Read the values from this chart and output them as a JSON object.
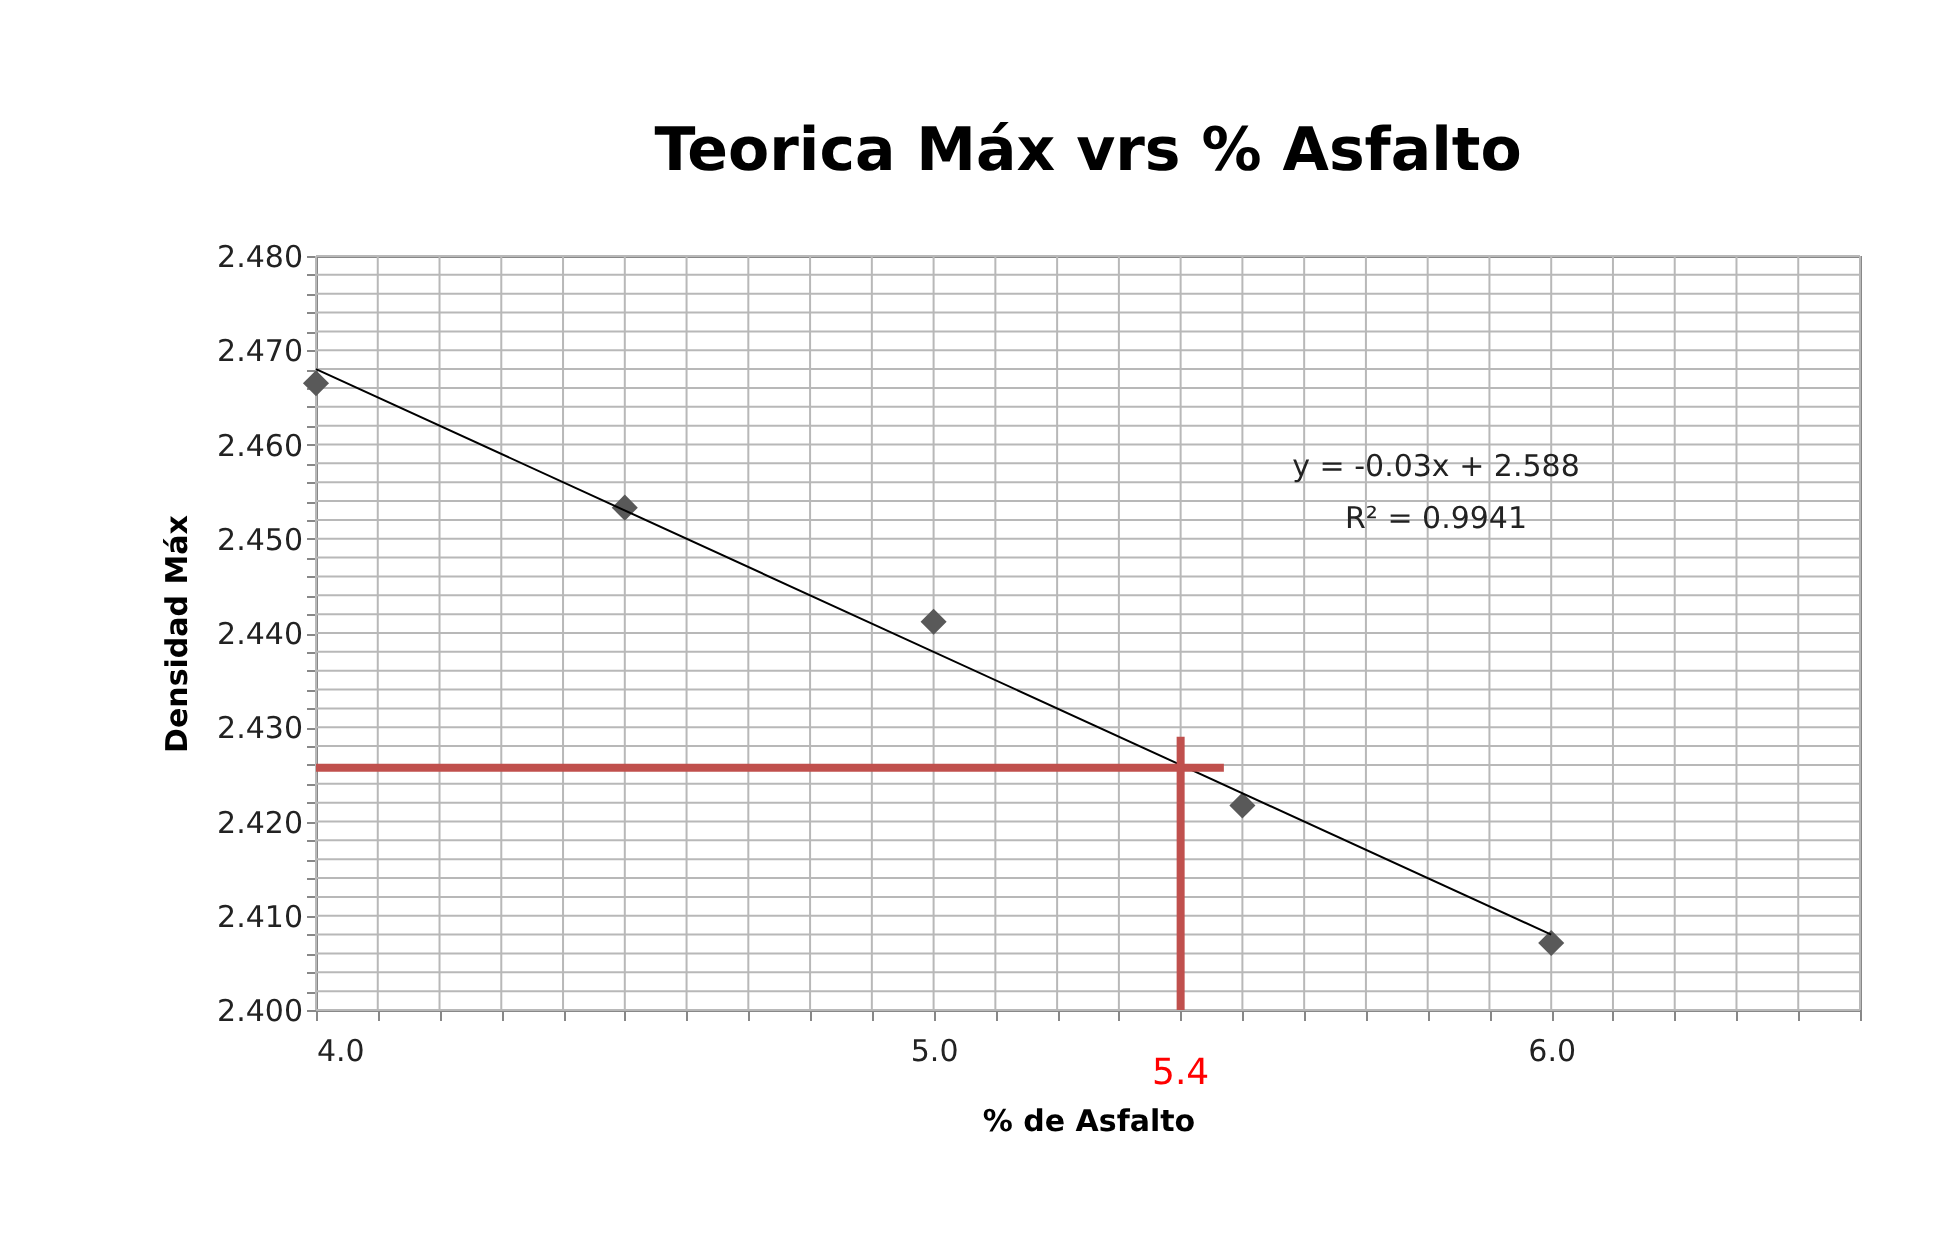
{
  "chart_data": {
    "type": "scatter",
    "title": "Teorica Máx vrs % Asfalto",
    "xlabel": "% de Asfalto",
    "ylabel": "Densidad Máx",
    "x": [
      4.0,
      4.5,
      5.0,
      5.5,
      6.0
    ],
    "series": [
      {
        "color": "#595959",
        "values": [
          2.4665,
          2.4533,
          2.4412,
          2.4217,
          2.4071
        ],
        "marker": "diamond"
      },
      {
        "type": "line",
        "color": "#000000",
        "x": [
          4.0,
          6.0
        ],
        "values": [
          2.468,
          2.408
        ],
        "marker": "none"
      },
      {
        "type": "line",
        "color": "#c0504d",
        "x": [
          4.0,
          5.47
        ],
        "values": [
          2.4257,
          2.4257
        ],
        "marker": "none"
      },
      {
        "type": "line",
        "color": "#c0504d",
        "x": [
          5.4,
          5.4
        ],
        "values": [
          2.4,
          2.429
        ],
        "marker": "none"
      }
    ],
    "xlim": [
      4.0,
      6.5
    ],
    "xticks": [
      {
        "value": 4.0,
        "label": "4.0"
      },
      {
        "value": 4.1,
        "label": null
      },
      {
        "value": 4.2,
        "label": null
      },
      {
        "value": 4.3,
        "label": null
      },
      {
        "value": 4.4,
        "label": null
      },
      {
        "value": 4.5,
        "label": null
      },
      {
        "value": 4.6,
        "label": null
      },
      {
        "value": 4.7,
        "label": null
      },
      {
        "value": 4.8,
        "label": null
      },
      {
        "value": 4.9,
        "label": null
      },
      {
        "value": 5.0,
        "label": "5.0"
      },
      {
        "value": 5.1,
        "label": null
      },
      {
        "value": 5.2,
        "label": null
      },
      {
        "value": 5.3,
        "label": null
      },
      {
        "value": 5.4,
        "label": null
      },
      {
        "value": 5.5,
        "label": null
      },
      {
        "value": 5.6,
        "label": null
      },
      {
        "value": 5.7,
        "label": null
      },
      {
        "value": 5.8,
        "label": null
      },
      {
        "value": 5.9,
        "label": null
      },
      {
        "value": 6.0,
        "label": "6.0"
      },
      {
        "value": 6.1,
        "label": null
      },
      {
        "value": 6.2,
        "label": null
      },
      {
        "value": 6.3,
        "label": null
      },
      {
        "value": 6.4,
        "label": null
      },
      {
        "value": 6.5,
        "label": null
      }
    ],
    "ylim": [
      2.4,
      2.48
    ],
    "yticks": [
      {
        "value": 2.4,
        "label": "2.400"
      },
      {
        "value": 2.402,
        "label": null
      },
      {
        "value": 2.404,
        "label": null
      },
      {
        "value": 2.406,
        "label": null
      },
      {
        "value": 2.408,
        "label": null
      },
      {
        "value": 2.41,
        "label": "2.410"
      },
      {
        "value": 2.412,
        "label": null
      },
      {
        "value": 2.414,
        "label": null
      },
      {
        "value": 2.416,
        "label": null
      },
      {
        "value": 2.418,
        "label": null
      },
      {
        "value": 2.42,
        "label": "2.420"
      },
      {
        "value": 2.422,
        "label": null
      },
      {
        "value": 2.424,
        "label": null
      },
      {
        "value": 2.426,
        "label": null
      },
      {
        "value": 2.428,
        "label": null
      },
      {
        "value": 2.43,
        "label": "2.430"
      },
      {
        "value": 2.432,
        "label": null
      },
      {
        "value": 2.434,
        "label": null
      },
      {
        "value": 2.436,
        "label": null
      },
      {
        "value": 2.438,
        "label": null
      },
      {
        "value": 2.44,
        "label": "2.440"
      },
      {
        "value": 2.442,
        "label": null
      },
      {
        "value": 2.444,
        "label": null
      },
      {
        "value": 2.446,
        "label": null
      },
      {
        "value": 2.448,
        "label": null
      },
      {
        "value": 2.45,
        "label": "2.450"
      },
      {
        "value": 2.452,
        "label": null
      },
      {
        "value": 2.454,
        "label": null
      },
      {
        "value": 2.456,
        "label": null
      },
      {
        "value": 2.458,
        "label": null
      },
      {
        "value": 2.46,
        "label": "2.460"
      },
      {
        "value": 2.462,
        "label": null
      },
      {
        "value": 2.464,
        "label": null
      },
      {
        "value": 2.466,
        "label": null
      },
      {
        "value": 2.468,
        "label": null
      },
      {
        "value": 2.47,
        "label": "2.470"
      },
      {
        "value": 2.472,
        "label": null
      },
      {
        "value": 2.474,
        "label": null
      },
      {
        "value": 2.476,
        "label": null
      },
      {
        "value": 2.478,
        "label": null
      },
      {
        "value": 2.48,
        "label": "2.480"
      }
    ],
    "grid": true,
    "annotations": [
      "y = -0.03x + 2.588",
      "R² = 0.9941",
      {
        "text": "5.4",
        "x": 5.4,
        "y": 2.4
      }
    ]
  }
}
